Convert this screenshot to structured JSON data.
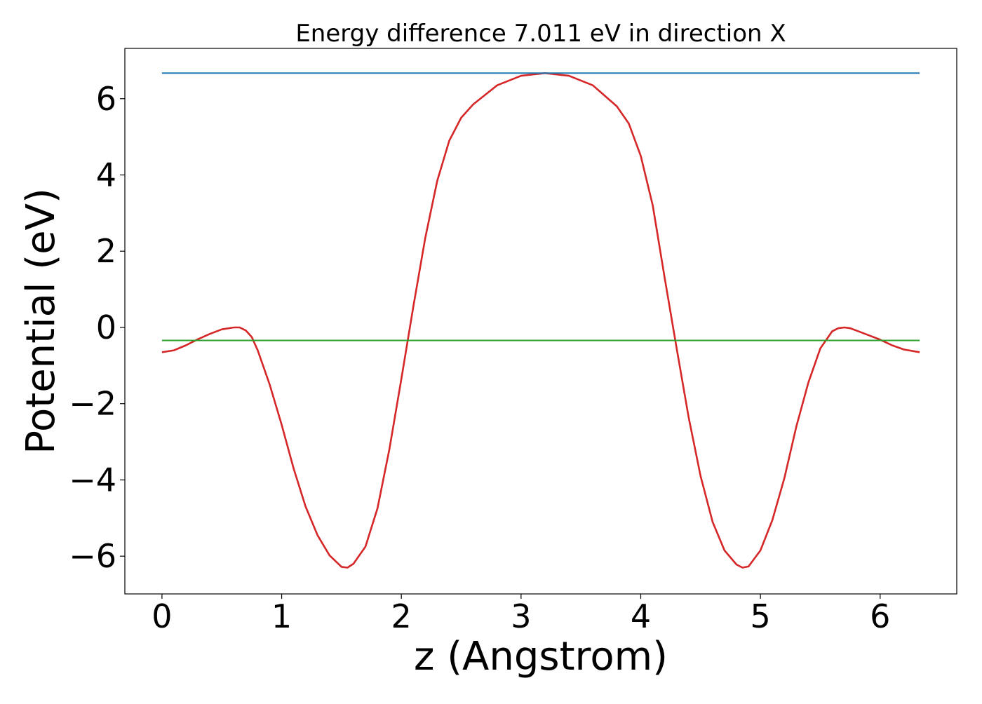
{
  "chart_data": {
    "type": "line",
    "title": "Energy difference 7.011 eV in direction X",
    "xlabel": "z (Angstrom)",
    "ylabel": "Potential (eV)",
    "xlim": [
      -0.31,
      6.64
    ],
    "ylim": [
      -6.99,
      7.32
    ],
    "xticks": [
      0,
      1,
      2,
      3,
      4,
      5,
      6
    ],
    "xtick_labels": [
      "0",
      "1",
      "2",
      "3",
      "4",
      "5",
      "6"
    ],
    "yticks": [
      -6,
      -4,
      -2,
      0,
      2,
      4,
      6
    ],
    "ytick_labels": [
      "−6",
      "−4",
      "−2",
      "0",
      "2",
      "4",
      "6"
    ],
    "grid": false,
    "legend": "none",
    "series": [
      {
        "color": "#d62728",
        "x": [
          0,
          0.1,
          0.2,
          0.3,
          0.4,
          0.5,
          0.6,
          0.65,
          0.7,
          0.75,
          0.8,
          0.9,
          1.0,
          1.1,
          1.2,
          1.3,
          1.4,
          1.5,
          1.55,
          1.6,
          1.7,
          1.8,
          1.9,
          2.0,
          2.1,
          2.2,
          2.3,
          2.4,
          2.5,
          2.6,
          2.8,
          3.0,
          3.2,
          3.4,
          3.6,
          3.8,
          3.9,
          4.0,
          4.1,
          4.2,
          4.3,
          4.4,
          4.5,
          4.6,
          4.7,
          4.8,
          4.85,
          4.9,
          5.0,
          5.1,
          5.2,
          5.3,
          5.4,
          5.5,
          5.6,
          5.65,
          5.7,
          5.75,
          5.8,
          5.9,
          6.0,
          6.1,
          6.2,
          6.33
        ],
        "y": [
          -0.65,
          -0.6,
          -0.47,
          -0.31,
          -0.17,
          -0.05,
          0.0,
          0.0,
          -0.08,
          -0.25,
          -0.6,
          -1.5,
          -2.55,
          -3.7,
          -4.7,
          -5.45,
          -5.98,
          -6.28,
          -6.3,
          -6.2,
          -5.75,
          -4.75,
          -3.2,
          -1.35,
          0.55,
          2.35,
          3.85,
          4.9,
          5.5,
          5.85,
          6.35,
          6.6,
          6.67,
          6.6,
          6.35,
          5.8,
          5.35,
          4.5,
          3.2,
          1.3,
          -0.55,
          -2.35,
          -3.9,
          -5.1,
          -5.85,
          -6.22,
          -6.3,
          -6.27,
          -5.85,
          -5.05,
          -3.95,
          -2.6,
          -1.45,
          -0.55,
          -0.1,
          -0.02,
          0.0,
          -0.02,
          -0.08,
          -0.2,
          -0.32,
          -0.47,
          -0.58,
          -0.65
        ]
      },
      {
        "color": "#1f77b4",
        "x": [
          0,
          6.33
        ],
        "y": [
          6.67,
          6.67
        ]
      },
      {
        "color": "#2ca02c",
        "x": [
          0,
          6.33
        ],
        "y": [
          -0.34,
          -0.34
        ]
      }
    ]
  }
}
